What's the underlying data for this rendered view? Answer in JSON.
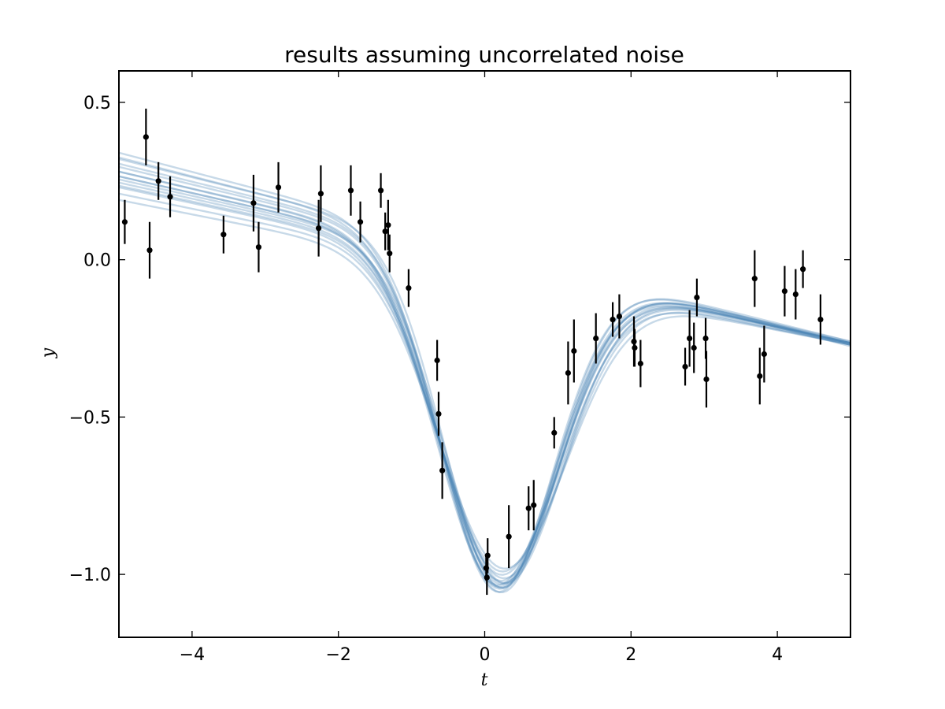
{
  "chart_data": {
    "type": "line",
    "title": "results assuming uncorrelated noise",
    "xlabel": "t",
    "ylabel": "y",
    "xlim": [
      -5,
      5
    ],
    "ylim": [
      -1.2,
      0.6
    ],
    "xticks": [
      -4,
      -2,
      0,
      2,
      4
    ],
    "xtick_labels": [
      "−4",
      "−2",
      "0",
      "2",
      "4"
    ],
    "yticks": [
      0.5,
      0.0,
      -0.5,
      -1.0
    ],
    "ytick_labels": [
      "0.5",
      "0.0",
      "−0.5",
      "−1.0"
    ],
    "grid": false,
    "legend": "none",
    "curve_color": "#4682b4",
    "point_color": "#000000",
    "samples": [
      {
        "a": -0.053,
        "b": 0.0,
        "A": -1.02,
        "mu": 0.2,
        "s": 0.8
      },
      {
        "a": -0.056,
        "b": 0.015,
        "A": -1.05,
        "mu": 0.18,
        "s": 0.78
      },
      {
        "a": -0.05,
        "b": -0.015,
        "A": -1.0,
        "mu": 0.22,
        "s": 0.82
      },
      {
        "a": -0.06,
        "b": 0.025,
        "A": -1.07,
        "mu": 0.19,
        "s": 0.79
      },
      {
        "a": -0.048,
        "b": -0.03,
        "A": -0.95,
        "mu": 0.21,
        "s": 0.83
      },
      {
        "a": -0.055,
        "b": 0.005,
        "A": -1.03,
        "mu": 0.15,
        "s": 0.8
      },
      {
        "a": -0.052,
        "b": -0.005,
        "A": -1.01,
        "mu": 0.25,
        "s": 0.81
      },
      {
        "a": -0.058,
        "b": 0.03,
        "A": -1.06,
        "mu": 0.2,
        "s": 0.76
      },
      {
        "a": -0.05,
        "b": -0.02,
        "A": -0.98,
        "mu": 0.23,
        "s": 0.84
      },
      {
        "a": -0.054,
        "b": 0.01,
        "A": -1.04,
        "mu": 0.17,
        "s": 0.8
      },
      {
        "a": -0.046,
        "b": -0.04,
        "A": -0.93,
        "mu": 0.24,
        "s": 0.86
      },
      {
        "a": -0.061,
        "b": 0.035,
        "A": -1.08,
        "mu": 0.16,
        "s": 0.77
      },
      {
        "a": -0.053,
        "b": 0.0,
        "A": -0.99,
        "mu": 0.2,
        "s": 0.82
      },
      {
        "a": -0.057,
        "b": 0.02,
        "A": -1.05,
        "mu": 0.21,
        "s": 0.79
      },
      {
        "a": -0.051,
        "b": -0.01,
        "A": -1.0,
        "mu": 0.19,
        "s": 0.81
      }
    ],
    "points": [
      {
        "t": -4.92,
        "y": 0.12,
        "err": 0.07
      },
      {
        "t": -4.63,
        "y": 0.39,
        "err": 0.09
      },
      {
        "t": -4.58,
        "y": 0.03,
        "err": 0.09
      },
      {
        "t": -4.46,
        "y": 0.25,
        "err": 0.06
      },
      {
        "t": -4.3,
        "y": 0.2,
        "err": 0.065
      },
      {
        "t": -3.57,
        "y": 0.08,
        "err": 0.06
      },
      {
        "t": -3.16,
        "y": 0.18,
        "err": 0.09
      },
      {
        "t": -3.09,
        "y": 0.04,
        "err": 0.08
      },
      {
        "t": -2.82,
        "y": 0.23,
        "err": 0.08
      },
      {
        "t": -2.27,
        "y": 0.1,
        "err": 0.09
      },
      {
        "t": -2.24,
        "y": 0.21,
        "err": 0.09
      },
      {
        "t": -1.83,
        "y": 0.22,
        "err": 0.08
      },
      {
        "t": -1.7,
        "y": 0.12,
        "err": 0.065
      },
      {
        "t": -1.42,
        "y": 0.22,
        "err": 0.055
      },
      {
        "t": -1.36,
        "y": 0.09,
        "err": 0.06
      },
      {
        "t": -1.32,
        "y": 0.11,
        "err": 0.08
      },
      {
        "t": -1.3,
        "y": 0.02,
        "err": 0.06
      },
      {
        "t": -1.04,
        "y": -0.09,
        "err": 0.06
      },
      {
        "t": -0.65,
        "y": -0.32,
        "err": 0.065
      },
      {
        "t": -0.63,
        "y": -0.49,
        "err": 0.07
      },
      {
        "t": -0.58,
        "y": -0.67,
        "err": 0.09
      },
      {
        "t": 0.02,
        "y": -0.98,
        "err": 0.04
      },
      {
        "t": 0.03,
        "y": -1.01,
        "err": 0.055
      },
      {
        "t": 0.04,
        "y": -0.94,
        "err": 0.055
      },
      {
        "t": 0.33,
        "y": -0.88,
        "err": 0.1
      },
      {
        "t": 0.6,
        "y": -0.79,
        "err": 0.07
      },
      {
        "t": 0.67,
        "y": -0.78,
        "err": 0.08
      },
      {
        "t": 0.95,
        "y": -0.55,
        "err": 0.05
      },
      {
        "t": 1.14,
        "y": -0.36,
        "err": 0.1
      },
      {
        "t": 1.22,
        "y": -0.29,
        "err": 0.1
      },
      {
        "t": 1.52,
        "y": -0.25,
        "err": 0.08
      },
      {
        "t": 1.75,
        "y": -0.19,
        "err": 0.055
      },
      {
        "t": 1.84,
        "y": -0.18,
        "err": 0.07
      },
      {
        "t": 2.04,
        "y": -0.26,
        "err": 0.08
      },
      {
        "t": 2.05,
        "y": -0.28,
        "err": 0.06
      },
      {
        "t": 2.13,
        "y": -0.33,
        "err": 0.075
      },
      {
        "t": 2.74,
        "y": -0.34,
        "err": 0.06
      },
      {
        "t": 2.8,
        "y": -0.25,
        "err": 0.09
      },
      {
        "t": 2.86,
        "y": -0.28,
        "err": 0.08
      },
      {
        "t": 2.9,
        "y": -0.12,
        "err": 0.06
      },
      {
        "t": 3.02,
        "y": -0.25,
        "err": 0.065
      },
      {
        "t": 3.03,
        "y": -0.38,
        "err": 0.09
      },
      {
        "t": 3.69,
        "y": -0.06,
        "err": 0.09
      },
      {
        "t": 3.76,
        "y": -0.37,
        "err": 0.09
      },
      {
        "t": 3.82,
        "y": -0.3,
        "err": 0.09
      },
      {
        "t": 4.1,
        "y": -0.1,
        "err": 0.08
      },
      {
        "t": 4.25,
        "y": -0.11,
        "err": 0.08
      },
      {
        "t": 4.35,
        "y": -0.03,
        "err": 0.06
      },
      {
        "t": 4.59,
        "y": -0.19,
        "err": 0.08
      }
    ]
  }
}
